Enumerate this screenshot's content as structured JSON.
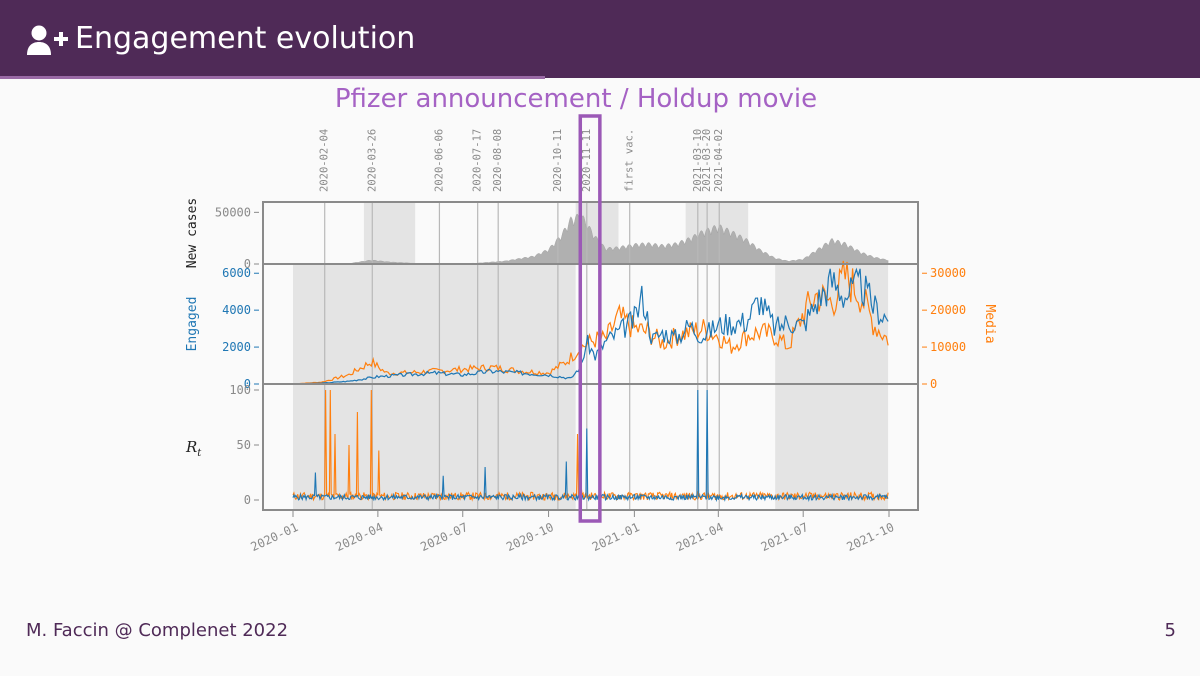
{
  "header": {
    "title": "Engagement evolution",
    "icon": "user-plus-icon"
  },
  "subtitle": "Pfizer announcement / Holdup movie",
  "footer": {
    "author": "M. Faccin @ Complenet 2022",
    "page_number": "5"
  },
  "colors": {
    "header_bg": "#4f2a57",
    "accent": "#a562c4",
    "engaged": "#1f77b4",
    "media": "#ff7f0e",
    "cases": "#b0b0b0",
    "shade": "#e4e4e4"
  },
  "chart_data": [
    {
      "type": "area",
      "panel": "cases",
      "ylabel": [
        "New cases"
      ],
      "yticks": [
        0,
        50000
      ],
      "ylim": [
        0,
        60000
      ],
      "series": [
        {
          "name": "New cases",
          "x": [
            "2020-01-01",
            "2020-02-01",
            "2020-03-01",
            "2020-03-25",
            "2020-04-15",
            "2020-05-15",
            "2020-06-15",
            "2020-07-15",
            "2020-08-15",
            "2020-09-15",
            "2020-10-01",
            "2020-10-15",
            "2020-10-25",
            "2020-11-05",
            "2020-11-20",
            "2020-12-01",
            "2020-12-15",
            "2021-01-01",
            "2021-01-15",
            "2021-02-01",
            "2021-02-15",
            "2021-03-01",
            "2021-03-15",
            "2021-04-01",
            "2021-04-15",
            "2021-05-01",
            "2021-05-15",
            "2021-06-01",
            "2021-06-15",
            "2021-07-01",
            "2021-07-15",
            "2021-08-01",
            "2021-08-15",
            "2021-09-01",
            "2021-09-15",
            "2021-09-30"
          ],
          "values": [
            0,
            0,
            500,
            4000,
            2000,
            500,
            300,
            800,
            3000,
            8000,
            15000,
            30000,
            46000,
            50000,
            28000,
            16000,
            17000,
            20000,
            21000,
            19000,
            21000,
            26000,
            33000,
            39000,
            33000,
            25000,
            15000,
            6000,
            3000,
            5000,
            14000,
            25000,
            21000,
            12000,
            7000,
            4000
          ]
        }
      ]
    },
    {
      "type": "line",
      "panel": "engagement",
      "ylabel_left": [
        "Engaged"
      ],
      "ylabel_right": "Media",
      "yticks_left": [
        0,
        2000,
        4000,
        6000
      ],
      "yticks_right": [
        0,
        10000,
        20000,
        30000
      ],
      "ylim_left": [
        0,
        6500
      ],
      "ylim_right": [
        0,
        32500
      ],
      "series": [
        {
          "name": "Engaged",
          "axis": "left",
          "x": [
            "2020-01-01",
            "2020-02-01",
            "2020-03-01",
            "2020-04-01",
            "2020-05-01",
            "2020-06-01",
            "2020-07-01",
            "2020-08-01",
            "2020-09-01",
            "2020-10-01",
            "2020-10-25",
            "2020-11-05",
            "2020-11-11",
            "2020-11-20",
            "2020-12-01",
            "2020-12-15",
            "2021-01-01",
            "2021-01-10",
            "2021-01-20",
            "2021-02-01",
            "2021-02-15",
            "2021-03-01",
            "2021-03-15",
            "2021-04-01",
            "2021-04-15",
            "2021-05-01",
            "2021-05-15",
            "2021-06-01",
            "2021-06-15",
            "2021-07-01",
            "2021-07-15",
            "2021-08-01",
            "2021-08-15",
            "2021-09-01",
            "2021-09-15",
            "2021-09-30"
          ],
          "values": [
            0,
            50,
            150,
            400,
            500,
            600,
            500,
            700,
            600,
            500,
            300,
            1000,
            2300,
            1500,
            2300,
            2800,
            3500,
            4800,
            2400,
            2800,
            2500,
            3200,
            2600,
            3200,
            3300,
            3400,
            4600,
            3000,
            3400,
            3200,
            4400,
            5600,
            4800,
            5400,
            4200,
            3500
          ]
        },
        {
          "name": "Media",
          "axis": "right",
          "x": [
            "2020-01-01",
            "2020-02-01",
            "2020-03-01",
            "2020-03-25",
            "2020-04-10",
            "2020-05-01",
            "2020-06-01",
            "2020-07-01",
            "2020-08-01",
            "2020-09-01",
            "2020-10-01",
            "2020-10-20",
            "2020-11-05",
            "2020-11-20",
            "2020-12-01",
            "2020-12-15",
            "2021-01-01",
            "2021-01-15",
            "2021-02-01",
            "2021-02-15",
            "2021-03-01",
            "2021-03-15",
            "2021-04-01",
            "2021-04-15",
            "2021-05-01",
            "2021-05-15",
            "2021-06-01",
            "2021-06-15",
            "2021-07-01",
            "2021-07-15",
            "2021-08-01",
            "2021-08-15",
            "2021-09-01",
            "2021-09-15",
            "2021-09-30"
          ],
          "values": [
            0,
            500,
            2500,
            6000,
            3000,
            3000,
            3500,
            4000,
            4500,
            3500,
            3000,
            6000,
            10000,
            12000,
            12000,
            18000,
            15000,
            14000,
            11000,
            13000,
            14000,
            15000,
            13000,
            10000,
            13000,
            14000,
            13000,
            10000,
            19000,
            24000,
            22000,
            29000,
            24000,
            16000,
            12000
          ]
        }
      ]
    },
    {
      "type": "line",
      "panel": "rt",
      "ylabel": "R_t",
      "yticks": [
        0,
        50,
        100
      ],
      "ylim": [
        0,
        100
      ],
      "series": [
        {
          "name": "Engaged",
          "spikes": [
            [
              "2020-01-25",
              25
            ],
            [
              "2020-06-10",
              22
            ],
            [
              "2020-07-25",
              30
            ],
            [
              "2020-10-20",
              35
            ],
            [
              "2020-11-11",
              65
            ],
            [
              "2021-03-10",
              100
            ],
            [
              "2021-03-20",
              100
            ]
          ]
        },
        {
          "name": "Media",
          "spikes": [
            [
              "2020-02-05",
              100
            ],
            [
              "2020-02-10",
              100
            ],
            [
              "2020-02-15",
              60
            ],
            [
              "2020-03-01",
              50
            ],
            [
              "2020-03-10",
              80
            ],
            [
              "2020-03-25",
              100
            ],
            [
              "2020-04-02",
              45
            ],
            [
              "2020-11-01",
              60
            ],
            [
              "2020-11-05",
              12
            ]
          ]
        }
      ]
    }
  ],
  "x_axis": {
    "ticks": [
      "2020-01",
      "2020-04",
      "2020-07",
      "2020-10",
      "2021-01",
      "2021-04",
      "2021-07",
      "2021-10"
    ]
  },
  "events": [
    {
      "date": "2020-02-04",
      "label": "2020-02-04"
    },
    {
      "date": "2020-03-26",
      "label": "2020-03-26"
    },
    {
      "date": "2020-06-06",
      "label": "2020-06-06"
    },
    {
      "date": "2020-07-17",
      "label": "2020-07-17"
    },
    {
      "date": "2020-08-08",
      "label": "2020-08-08"
    },
    {
      "date": "2020-10-11",
      "label": "2020-10-11"
    },
    {
      "date": "2020-11-11",
      "label": "2020-11-11"
    },
    {
      "date": "2020-12-27",
      "label": "first vac."
    },
    {
      "date": "2021-03-10",
      "label": "2021-03-10"
    },
    {
      "date": "2021-03-20",
      "label": "2021-03-20"
    },
    {
      "date": "2021-04-02",
      "label": "2021-04-02"
    }
  ],
  "shaded_periods": [
    {
      "panel": "cases",
      "start": "2020-03-17",
      "end": "2020-05-11"
    },
    {
      "panel": "cases",
      "start": "2020-10-30",
      "end": "2020-12-15"
    },
    {
      "panel": "cases",
      "start": "2021-02-25",
      "end": "2021-05-03"
    },
    {
      "panel": "lower",
      "start": "2020-01-01",
      "end": "2020-10-30"
    },
    {
      "panel": "lower",
      "start": "2021-06-01",
      "end": "2021-09-30"
    }
  ],
  "highlight": {
    "start": "2020-11-04",
    "end": "2020-11-25"
  }
}
